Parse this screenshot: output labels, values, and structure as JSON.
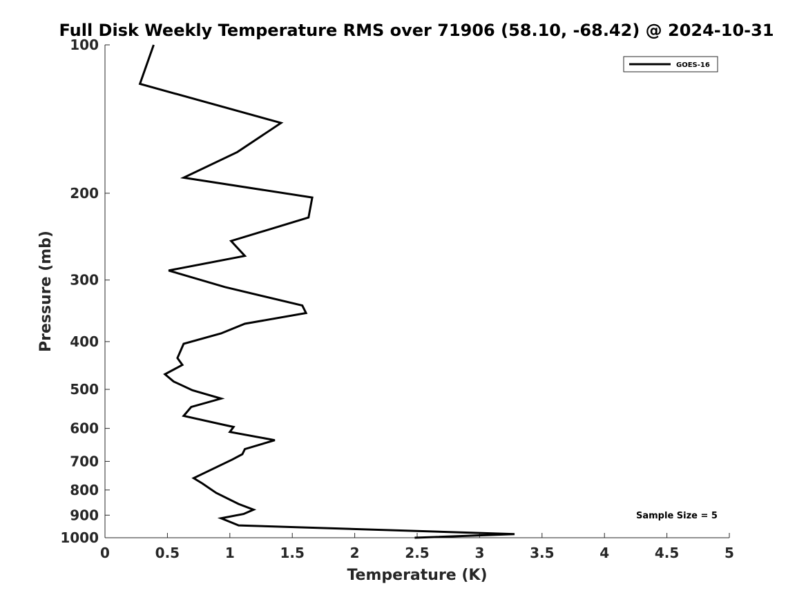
{
  "chart_data": {
    "type": "line",
    "title": "Full Disk Weekly Temperature RMS over 71906 (58.10, -68.42) @ 2024-10-31",
    "xlabel": "Temperature (K)",
    "ylabel": "Pressure (mb)",
    "xlim": [
      0,
      5
    ],
    "ylim": [
      100,
      1000
    ],
    "yscale": "log",
    "y_reversed": true,
    "x_ticks": [
      "0",
      "0.5",
      "1",
      "1.5",
      "2",
      "2.5",
      "3",
      "3.5",
      "4",
      "4.5",
      "5"
    ],
    "y_ticks": [
      "100",
      "200",
      "300",
      "400",
      "500",
      "600",
      "700",
      "800",
      "900",
      "1000"
    ],
    "grid": false,
    "legend_position": "top-right",
    "series": [
      {
        "name": "GOES-16",
        "color": "#000000",
        "points": [
          [
            0.39,
            100
          ],
          [
            0.28,
            120
          ],
          [
            1.41,
            144
          ],
          [
            1.06,
            165
          ],
          [
            0.63,
            186
          ],
          [
            1.66,
            204
          ],
          [
            1.63,
            224
          ],
          [
            1.01,
            250
          ],
          [
            1.12,
            268
          ],
          [
            0.51,
            287
          ],
          [
            0.96,
            310
          ],
          [
            1.58,
            338
          ],
          [
            1.61,
            350
          ],
          [
            1.12,
            368
          ],
          [
            0.93,
            385
          ],
          [
            0.63,
            404
          ],
          [
            0.58,
            432
          ],
          [
            0.62,
            446
          ],
          [
            0.48,
            466
          ],
          [
            0.55,
            482
          ],
          [
            0.7,
            502
          ],
          [
            0.93,
            522
          ],
          [
            0.69,
            543
          ],
          [
            0.63,
            566
          ],
          [
            0.95,
            590
          ],
          [
            1.03,
            596
          ],
          [
            1.0,
            610
          ],
          [
            1.36,
            634
          ],
          [
            1.12,
            661
          ],
          [
            1.1,
            677
          ],
          [
            1.02,
            694
          ],
          [
            0.71,
            757
          ],
          [
            0.78,
            776
          ],
          [
            0.89,
            811
          ],
          [
            1.07,
            854
          ],
          [
            1.19,
            877
          ],
          [
            1.11,
            895
          ],
          [
            0.93,
            913
          ],
          [
            1.07,
            944
          ],
          [
            3.28,
            983
          ],
          [
            2.48,
            1000
          ]
        ]
      }
    ],
    "annotations": [
      "Sample Size = 5"
    ]
  }
}
